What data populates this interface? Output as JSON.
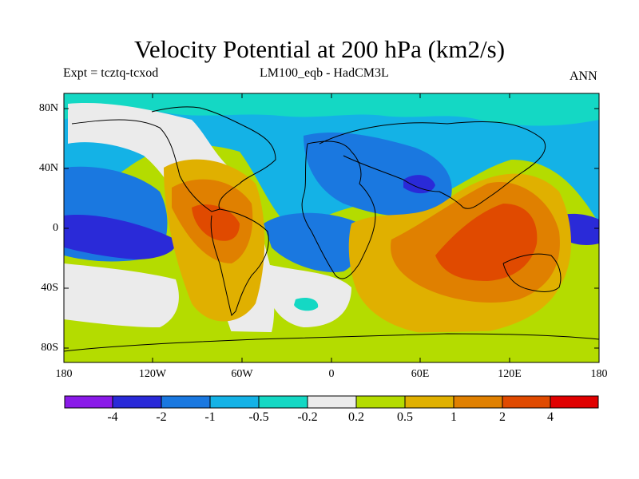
{
  "title": "Velocity Potential at 200 hPa (km2/s)",
  "subtitle_left": "Expt = tcztq-tcxod",
  "subtitle_center": "LM100_eqb - HadCM3L",
  "subtitle_right": "ANN",
  "lat_labels": [
    "80N",
    "40N",
    "0",
    "40S",
    "80S"
  ],
  "lon_labels": [
    "180",
    "120W",
    "60W",
    "0",
    "60E",
    "120E",
    "180"
  ],
  "colorbar": {
    "labels": [
      "-4",
      "-2",
      "-1",
      "-0.5",
      "-0.2",
      "0.2",
      "0.5",
      "1",
      "2",
      "4"
    ],
    "colors": [
      "#8a1ae8",
      "#2a2ad8",
      "#1a78e0",
      "#14b2e6",
      "#14d8c4",
      "#ebebeb",
      "#b4dc00",
      "#e0b000",
      "#e08000",
      "#e04a00",
      "#e00000"
    ]
  }
}
